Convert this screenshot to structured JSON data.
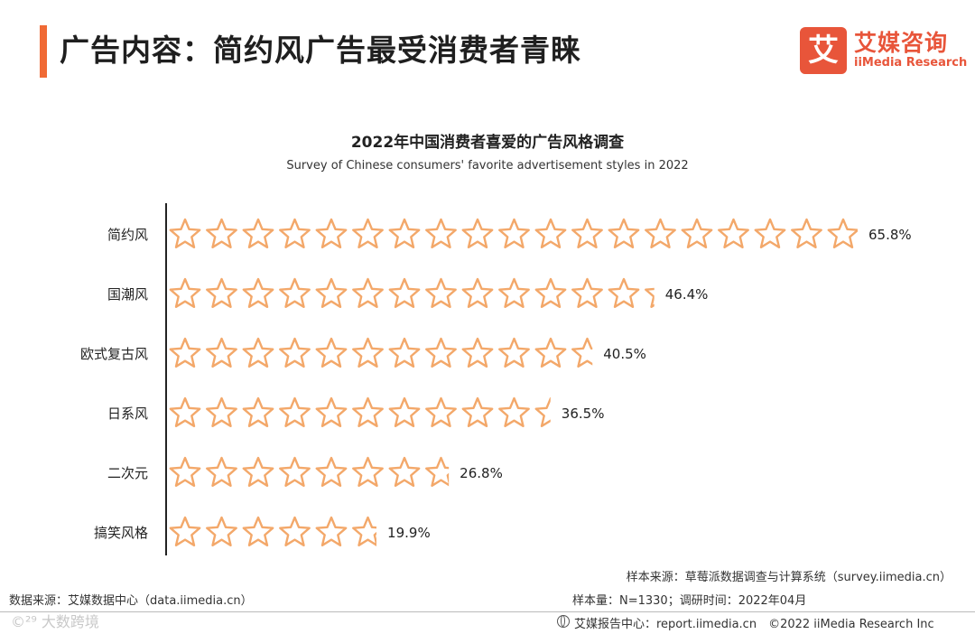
{
  "header": {
    "title": "广告内容：简约风广告最受消费者青睐",
    "logo_mark": "艾",
    "logo_cn": "艾媒咨询",
    "logo_en": "iiMedia Research"
  },
  "chart_data": {
    "type": "bar",
    "title": "2022年中国消费者喜爱的广告风格调查",
    "subtitle": "Survey of Chinese consumers' favorite advertisement styles in 2022",
    "categories": [
      "简约风",
      "国潮风",
      "欧式复古风",
      "日系风",
      "二次元",
      "搞笑风格"
    ],
    "values": [
      65.8,
      46.4,
      40.5,
      36.5,
      26.8,
      19.9
    ],
    "value_labels": [
      "65.8%",
      "46.4%",
      "40.5%",
      "36.5%",
      "26.8%",
      "19.9%"
    ],
    "unit": "%",
    "bar_style": "outlined stars pictogram",
    "orientation": "horizontal",
    "grid": false,
    "colors": {
      "star_stroke": "#f3a86a",
      "axis": "#222222",
      "label": "#222222"
    }
  },
  "notes": {
    "source_sample": "样本来源：草莓派数据调查与计算系统（survey.iimedia.cn）",
    "sample_size": "样本量：N=1330；调研时间：2022年04月",
    "data_source": "数据来源：艾媒数据中心（data.iimedia.cn）",
    "footer": "艾媒报告中心：report.iimedia.cn　©2022  iiMedia Research  Inc",
    "watermark": "©²⁹ 大数跨境"
  }
}
